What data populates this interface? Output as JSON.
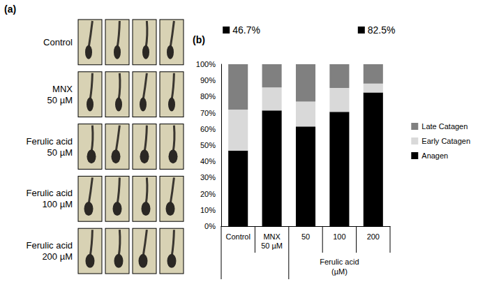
{
  "panel_a": {
    "letter": "(a)",
    "images_per_row": 4,
    "rows": [
      "Control",
      "MNX 50 µM",
      "Ferulic acid 50 µM",
      "Ferulic acid 100 µM",
      "Ferulic acid 200 µM"
    ]
  },
  "panel_b": {
    "letter": "(b)"
  },
  "chart_data": {
    "type": "bar",
    "stacked": true,
    "categories": [
      "Control",
      "MNX 50 µM",
      "50",
      "100",
      "200"
    ],
    "category_group": {
      "label": "Ferulic acid (µM)",
      "members": [
        "50",
        "100",
        "200"
      ]
    },
    "series": [
      {
        "name": "Anagen",
        "color": "#000000",
        "values": [
          46.7,
          71.4,
          61.5,
          70.6,
          82.5
        ]
      },
      {
        "name": "Early Catagen",
        "color": "#d9d9d9",
        "values": [
          25.3,
          14.3,
          15.4,
          14.7,
          5.5
        ]
      },
      {
        "name": "Late Catagen",
        "color": "#808080",
        "values": [
          28.0,
          14.3,
          23.1,
          14.7,
          12.0
        ]
      }
    ],
    "ylim": [
      0,
      100
    ],
    "yticks": [
      {
        "value": 0,
        "label": "0%"
      },
      {
        "value": 10,
        "label": "10%"
      },
      {
        "value": 20,
        "label": "20%"
      },
      {
        "value": 30,
        "label": "30%"
      },
      {
        "value": 40,
        "label": "40%"
      },
      {
        "value": 50,
        "label": "50%"
      },
      {
        "value": 60,
        "label": "60%"
      },
      {
        "value": 70,
        "label": "70%"
      },
      {
        "value": 80,
        "label": "80%"
      },
      {
        "value": 90,
        "label": "90%"
      },
      {
        "value": 100,
        "label": "100%"
      }
    ],
    "grid": false,
    "legend": "right",
    "annotations": [
      {
        "category": "Control",
        "series": "Anagen",
        "label": "46.7%"
      },
      {
        "category": "200",
        "series": "Anagen",
        "label": "82.5%"
      }
    ]
  }
}
